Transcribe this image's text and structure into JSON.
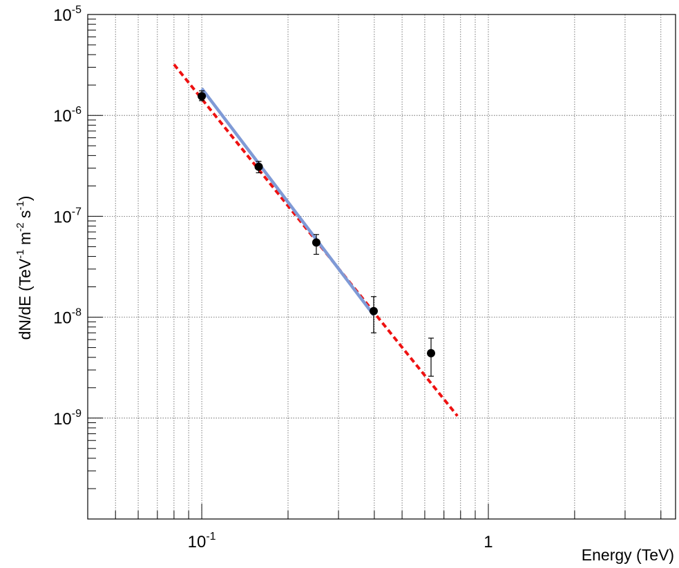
{
  "chart_data": {
    "type": "scatter",
    "xscale": "log",
    "yscale": "log",
    "xlim": [
      0.04,
      4.5
    ],
    "ylim": [
      1e-10,
      1e-05
    ],
    "grid": true,
    "xlabel": "Energy (TeV)",
    "ylabel_parts": {
      "a": "dN/dE (TeV",
      "b": "-1",
      "c": " m",
      "d": "-2",
      "e": " s",
      "f": "-1",
      "g": ")"
    },
    "x_tick_labels": [
      {
        "value": 0.1,
        "base": "10",
        "exp": "-1"
      },
      {
        "value": 1,
        "base": "1",
        "exp": ""
      }
    ],
    "y_tick_labels": [
      {
        "value": 1e-05,
        "base": "10",
        "exp": "-5"
      },
      {
        "value": 1e-06,
        "base": "10",
        "exp": "-6"
      },
      {
        "value": 1e-07,
        "base": "10",
        "exp": "-7"
      },
      {
        "value": 1e-08,
        "base": "10",
        "exp": "-8"
      },
      {
        "value": 1e-09,
        "base": "10",
        "exp": "-9"
      }
    ],
    "points": [
      {
        "x": 0.1,
        "y": 1.55e-06,
        "ylow": 1.4e-06,
        "yhigh": 1.75e-06
      },
      {
        "x": 0.158,
        "y": 3.1e-07,
        "ylow": 2.7e-07,
        "yhigh": 3.5e-07
      },
      {
        "x": 0.251,
        "y": 5.5e-08,
        "ylow": 4.2e-08,
        "yhigh": 6.6e-08
      },
      {
        "x": 0.398,
        "y": 1.15e-08,
        "ylow": 7e-09,
        "yhigh": 1.6e-08
      },
      {
        "x": 0.631,
        "y": 4.4e-09,
        "ylow": 2.6e-09,
        "yhigh": 6.2e-09
      }
    ],
    "series": [
      {
        "line_style": "dashed",
        "color": "#ee1111",
        "x": [
          0.08,
          0.78
        ],
        "y": [
          3.2e-06,
          1.05e-09
        ]
      },
      {
        "line_style": "solid",
        "color": "#7f9ad6",
        "x": [
          0.1,
          0.398
        ],
        "y": [
          1.85e-06,
          1.05e-08
        ]
      }
    ]
  }
}
